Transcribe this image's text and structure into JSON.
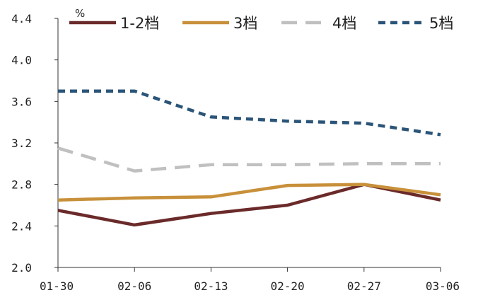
{
  "chart_data": {
    "type": "line",
    "title": "",
    "xlabel": "",
    "ylabel": "%",
    "categories": [
      "01-30",
      "02-06",
      "02-13",
      "02-20",
      "02-27",
      "03-06"
    ],
    "ylim": [
      2.0,
      4.4
    ],
    "yticks": [
      "2.0",
      "2.4",
      "2.8",
      "3.2",
      "3.6",
      "4.0",
      "4.4"
    ],
    "grid": false,
    "legend_position": "top",
    "series": [
      {
        "name": "1-2档",
        "values": [
          2.55,
          2.41,
          2.52,
          2.6,
          2.8,
          2.65
        ],
        "color": "#6b2a2a",
        "style": "solid"
      },
      {
        "name": "3档",
        "values": [
          2.65,
          2.67,
          2.68,
          2.79,
          2.8,
          2.7
        ],
        "color": "#c8903a",
        "style": "solid"
      },
      {
        "name": "4档",
        "values": [
          3.15,
          2.93,
          2.99,
          2.99,
          3.0,
          3.0
        ],
        "color": "#c0c0c0",
        "style": "longdash"
      },
      {
        "name": "5档",
        "values": [
          3.7,
          3.7,
          3.45,
          3.41,
          3.39,
          3.28
        ],
        "color": "#2b5578",
        "style": "dash"
      }
    ]
  }
}
